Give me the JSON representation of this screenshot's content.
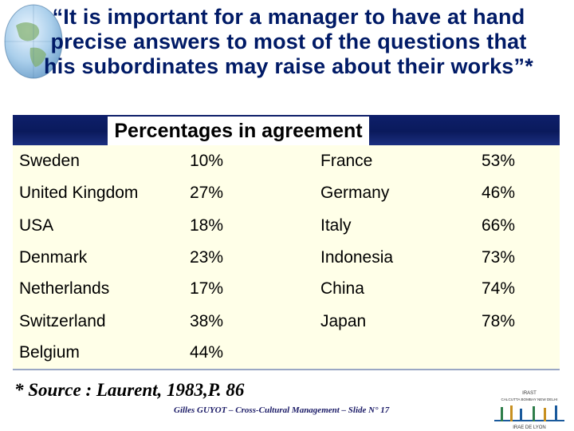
{
  "slide": {
    "title_lines": [
      "“It is important for a manager to have at hand",
      "precise answers to most of the questions that",
      "his subordinates may raise about their works”*"
    ],
    "table_header": "Percentages in agreement",
    "rows": [
      {
        "country_a": "Sweden",
        "value_a": "10%",
        "country_b": "France",
        "value_b": "53%"
      },
      {
        "country_a": "United Kingdom",
        "value_a": "27%",
        "country_b": "Germany",
        "value_b": "46%"
      },
      {
        "country_a": "USA",
        "value_a": "18%",
        "country_b": "Italy",
        "value_b": "66%"
      },
      {
        "country_a": "Denmark",
        "value_a": "23%",
        "country_b": "Indonesia",
        "value_b": "73%"
      },
      {
        "country_a": "Netherlands",
        "value_a": "17%",
        "country_b": "China",
        "value_b": "74%"
      },
      {
        "country_a": "Switzerland",
        "value_a": "38%",
        "country_b": "Japan",
        "value_b": "78%"
      },
      {
        "country_a": "Belgium",
        "value_a": "44%",
        "country_b": "",
        "value_b": ""
      }
    ],
    "source": "* Source : Laurent, 1983,P. 86",
    "footer": "Gilles GUYOT – Cross-Cultural Management – Slide N° 17",
    "logo_lines": [
      "IRAST",
      "CALCUTTA BOMBAY NEW DELHI",
      "IRAE DE LYON"
    ]
  },
  "colors": {
    "title": "#001a66",
    "header_bar": "#0a1a5c",
    "table_bg": "#ffffe8"
  },
  "icons": {
    "globe": "globe-icon",
    "logo": "institute-logo"
  }
}
